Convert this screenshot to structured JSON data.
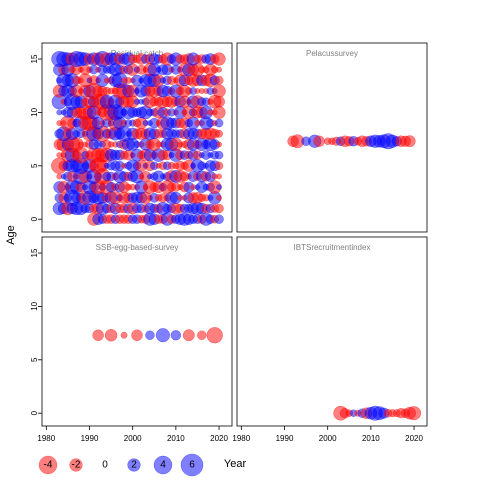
{
  "chart_data": {
    "type": "scatter",
    "subtype": "bubble-residuals",
    "xlabel": "Year",
    "ylabel": "Age",
    "xlim": [
      1979,
      2023
    ],
    "ylim": [
      -1.2,
      16.5
    ],
    "x_ticks": [
      1980,
      1990,
      2000,
      2010,
      2020
    ],
    "y_ticks": [
      0,
      5,
      10,
      15
    ],
    "colors": {
      "positive": "#0000ff",
      "negative": "#ff0000"
    },
    "legend": {
      "placement": "bottom-left",
      "labels": [
        "-4",
        "-2",
        "0",
        "2",
        "4",
        "6"
      ],
      "values": [
        -4,
        -2,
        0,
        2,
        4,
        6
      ]
    },
    "panels": [
      {
        "title": "Residual catch",
        "row": 0,
        "col": 0,
        "years": [
          1983,
          2020
        ],
        "ages": [
          0,
          15
        ],
        "series": [
          {
            "name": "",
            "age": 15,
            "residuals": [
              3,
              2.5,
              2,
              -2,
              3,
              2.5,
              2,
              -1.5,
              2,
              -2,
              3,
              -2,
              2,
              2,
              -1.5,
              1.5,
              2,
              -1,
              -0.8,
              -1.5,
              1,
              -1.2,
              1.5,
              1,
              -1,
              -2,
              1,
              2,
              -1,
              -1,
              -1.5,
              2,
              -0.8,
              -1,
              1,
              1.5,
              -1,
              -2
            ]
          },
          {
            "name": "",
            "age": 1,
            "residuals": [
              2,
              1.5,
              -2,
              1.5,
              2,
              2,
              1,
              1,
              -1,
              -1.5,
              2,
              1,
              -1,
              1.5,
              -1,
              -1,
              1.2,
              -1.5,
              1,
              1,
              -0.8,
              1.5,
              1,
              -1,
              2,
              1,
              1,
              -1.5,
              -1,
              1,
              1,
              1.5,
              2,
              1.5,
              -1,
              1,
              -0.8,
              -1
            ]
          },
          {
            "name": "",
            "age": 0,
            "residuals": [
              0,
              0,
              0,
              0,
              0,
              0,
              0,
              0,
              -2,
              1.5,
              1,
              -1,
              -1,
              1,
              -1,
              -1,
              -1,
              1,
              1,
              -0.8,
              -1,
              2,
              1.5,
              -1,
              -1,
              2,
              -1,
              1,
              1.5,
              2,
              1.5,
              1,
              1,
              -1,
              2,
              1,
              -0.8,
              1
            ]
          }
        ]
      },
      {
        "title": "Pelacussurvey",
        "row": 0,
        "col": 1,
        "ages": [
          7.3
        ],
        "points": [
          [
            1992,
            -1.5
          ],
          [
            1993,
            -2.2
          ],
          [
            1995,
            1
          ],
          [
            1997,
            2
          ],
          [
            1998,
            -1.5
          ],
          [
            2000,
            -0.6
          ],
          [
            2001,
            -0.6
          ],
          [
            2002,
            -0.9
          ],
          [
            2003,
            1
          ],
          [
            2004,
            -1.5
          ],
          [
            2005,
            -1.2
          ],
          [
            2006,
            1.2
          ],
          [
            2007,
            -0.8
          ],
          [
            2008,
            -1.5
          ],
          [
            2009,
            -1.2
          ],
          [
            2010,
            1.5
          ],
          [
            2011,
            2
          ],
          [
            2012,
            1.8
          ],
          [
            2013,
            2.2
          ],
          [
            2014,
            3
          ],
          [
            2015,
            2
          ],
          [
            2016,
            1.2
          ],
          [
            2017,
            -1.5
          ],
          [
            2018,
            -1.4
          ],
          [
            2019,
            -1.6
          ]
        ]
      },
      {
        "title": "SSB-egg-based-survey",
        "row": 1,
        "col": 0,
        "ages": [
          7.3
        ],
        "points": [
          [
            1992,
            -1.5
          ],
          [
            1995,
            -1.8
          ],
          [
            1998,
            -0.5
          ],
          [
            2001,
            -1.5
          ],
          [
            2004,
            1
          ],
          [
            2007,
            2.3
          ],
          [
            2010,
            1.2
          ],
          [
            2013,
            -1.6
          ],
          [
            2016,
            -1
          ],
          [
            2019,
            -3.1
          ]
        ]
      },
      {
        "title": "IBTSrecruitmentindex",
        "row": 1,
        "col": 1,
        "ages": [
          0
        ],
        "points": [
          [
            2003,
            -2.5
          ],
          [
            2004,
            -1.2
          ],
          [
            2005,
            -0.6
          ],
          [
            2006,
            0.6
          ],
          [
            2007,
            -0.5
          ],
          [
            2008,
            1
          ],
          [
            2009,
            -1.5
          ],
          [
            2010,
            1.8
          ],
          [
            2011,
            2.6
          ],
          [
            2012,
            2.2
          ],
          [
            2013,
            1.4
          ],
          [
            2014,
            -0.8
          ],
          [
            2015,
            -0.7
          ],
          [
            2016,
            -0.7
          ],
          [
            2017,
            -1.2
          ],
          [
            2018,
            -1
          ],
          [
            2019,
            -1.8
          ],
          [
            2020,
            -2.3
          ]
        ]
      }
    ]
  }
}
